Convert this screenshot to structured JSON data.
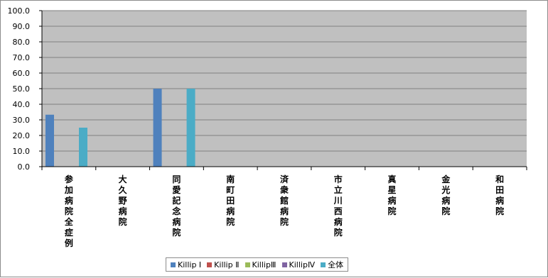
{
  "chart_data": {
    "type": "bar",
    "categories": [
      "参加病院全症例",
      "大久野病院",
      "同愛記念病院",
      "南町田病院",
      "済衆館病院",
      "市立川西病院",
      "真星病院",
      "金光病院",
      "和田病院"
    ],
    "series": [
      {
        "name": "Killip Ⅰ",
        "color": "#4f81bd",
        "values": [
          33.3,
          0,
          50.0,
          0,
          0,
          0,
          0,
          0,
          0
        ]
      },
      {
        "name": "Killip Ⅱ",
        "color": "#c0504d",
        "values": [
          0,
          0,
          0,
          0,
          0,
          0,
          0,
          0,
          0
        ]
      },
      {
        "name": "KillipⅢ",
        "color": "#9bbb59",
        "values": [
          0,
          0,
          0,
          0,
          0,
          0,
          0,
          0,
          0
        ]
      },
      {
        "name": "KillipⅣ",
        "color": "#8064a2",
        "values": [
          0,
          0,
          0,
          0,
          0,
          0,
          0,
          0,
          0
        ]
      },
      {
        "name": "全体",
        "color": "#4bacc6",
        "values": [
          25.0,
          0,
          50.0,
          0,
          0,
          0,
          0,
          0,
          0
        ]
      }
    ],
    "ylim": [
      0,
      100
    ],
    "yticks": [
      "0.0",
      "10.0",
      "20.0",
      "30.0",
      "40.0",
      "50.0",
      "60.0",
      "70.0",
      "80.0",
      "90.0",
      "100.0"
    ],
    "grid": true,
    "plot_background": "#c0c0c0",
    "legend": "bottom"
  }
}
